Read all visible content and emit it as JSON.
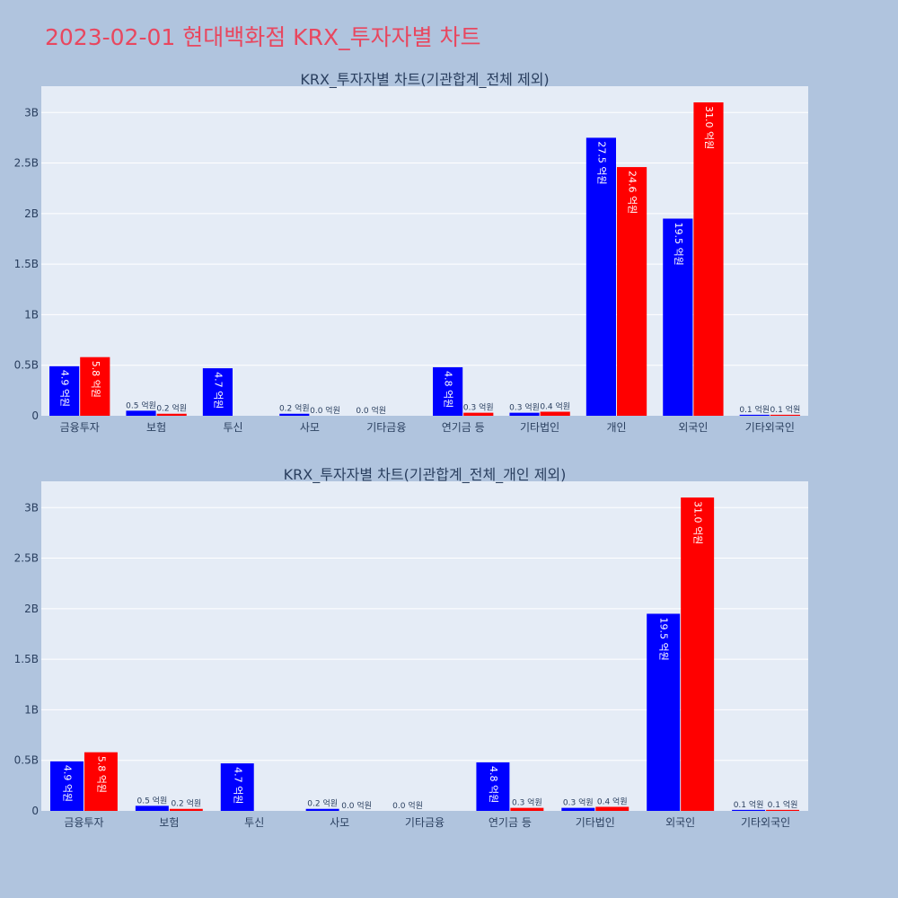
{
  "page": {
    "title": "2023-02-01 현대백화점 KRX_투자자별 차트",
    "title_color": "#e8475f",
    "background": "#b0c4de"
  },
  "chart_data": [
    {
      "type": "bar",
      "title": "KRX_투자자별 차트(기관합계_전체 제외)",
      "categories": [
        "금융투자",
        "보험",
        "투신",
        "사모",
        "기타금융",
        "연기금 등",
        "기타법인",
        "개인",
        "외국인",
        "기타외국인"
      ],
      "series": [
        {
          "color": "#0000ff",
          "values": [
            490000000,
            50000000,
            470000000,
            20000000,
            0,
            480000000,
            30000000,
            2750000000,
            1950000000,
            10000000
          ],
          "labels": [
            "4.9 억원",
            "0.5 억원",
            "4.7 억원",
            "0.2 억원",
            "0.0 억원",
            "4.8 억원",
            "0.3 억원",
            "27.5 억원",
            "19.5 억원",
            "0.1 억원"
          ]
        },
        {
          "color": "#ff0000",
          "values": [
            580000000,
            20000000,
            null,
            0,
            null,
            30000000,
            40000000,
            2460000000,
            3100000000,
            10000000
          ],
          "labels": [
            "5.8 억원",
            "0.2 억원",
            "",
            "0.0 억원",
            "",
            "0.3 억원",
            "0.4 억원",
            "24.6 억원",
            "31.0 억원",
            "0.1 억원"
          ]
        }
      ],
      "yticks": [
        {
          "value": 0,
          "label": "0"
        },
        {
          "value": 500000000,
          "label": "0.5B"
        },
        {
          "value": 1000000000,
          "label": "1B"
        },
        {
          "value": 1500000000,
          "label": "1.5B"
        },
        {
          "value": 2000000000,
          "label": "2B"
        },
        {
          "value": 2500000000,
          "label": "2.5B"
        },
        {
          "value": 3000000000,
          "label": "3B"
        }
      ],
      "ylim": [
        0,
        3260000000
      ],
      "grid": true,
      "plot_background": "#e5ecf6"
    },
    {
      "type": "bar",
      "title": "KRX_투자자별 차트(기관합계_전체_개인 제외)",
      "categories": [
        "금융투자",
        "보험",
        "투신",
        "사모",
        "기타금융",
        "연기금 등",
        "기타법인",
        "외국인",
        "기타외국인"
      ],
      "series": [
        {
          "color": "#0000ff",
          "values": [
            490000000,
            50000000,
            470000000,
            20000000,
            0,
            480000000,
            30000000,
            1950000000,
            10000000
          ],
          "labels": [
            "4.9 억원",
            "0.5 억원",
            "4.7 억원",
            "0.2 억원",
            "0.0 억원",
            "4.8 억원",
            "0.3 억원",
            "19.5 억원",
            "0.1 억원"
          ]
        },
        {
          "color": "#ff0000",
          "values": [
            580000000,
            20000000,
            null,
            0,
            null,
            30000000,
            40000000,
            3100000000,
            10000000
          ],
          "labels": [
            "5.8 억원",
            "0.2 억원",
            "",
            "0.0 억원",
            "",
            "0.3 억원",
            "0.4 억원",
            "31.0 억원",
            "0.1 억원"
          ]
        }
      ],
      "yticks": [
        {
          "value": 0,
          "label": "0"
        },
        {
          "value": 500000000,
          "label": "0.5B"
        },
        {
          "value": 1000000000,
          "label": "1B"
        },
        {
          "value": 1500000000,
          "label": "1.5B"
        },
        {
          "value": 2000000000,
          "label": "2B"
        },
        {
          "value": 2500000000,
          "label": "2.5B"
        },
        {
          "value": 3000000000,
          "label": "3B"
        }
      ],
      "ylim": [
        0,
        3260000000
      ],
      "grid": true,
      "plot_background": "#e5ecf6"
    }
  ]
}
